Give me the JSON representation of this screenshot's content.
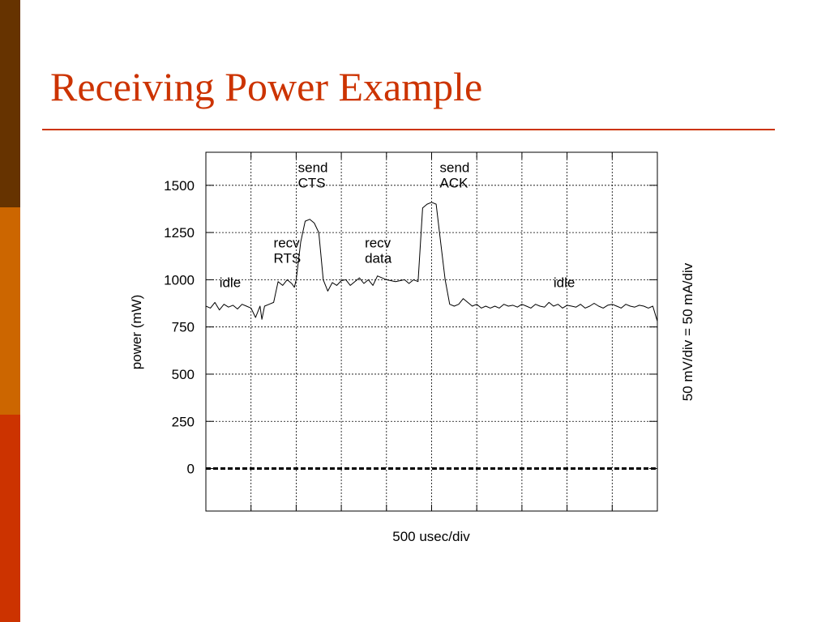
{
  "slide": {
    "title": "Receiving Power Example",
    "colors": {
      "bar_top": "#663300",
      "bar_mid": "#cc6600",
      "bar_bottom": "#cc3300",
      "title": "#cc3300"
    }
  },
  "chart_data": {
    "type": "line",
    "title": "",
    "xlabel": "500 usec/div",
    "ylabel": "power (mW)",
    "right_label": "50 mV/div = 50 mA/div",
    "ylim": [
      -225,
      1675
    ],
    "xlim": [
      0,
      5000
    ],
    "x_divisions": 10,
    "grid": true,
    "yticks": [
      0,
      250,
      500,
      750,
      1000,
      1250,
      1500
    ],
    "annotations": [
      {
        "text": [
          "idle"
        ],
        "x": 150,
        "y": 960
      },
      {
        "text": [
          "recv",
          "RTS"
        ],
        "x": 750,
        "y": 1170
      },
      {
        "text": [
          "send",
          "CTS"
        ],
        "x": 1020,
        "y": 1570
      },
      {
        "text": [
          "recv",
          "data"
        ],
        "x": 1760,
        "y": 1170
      },
      {
        "text": [
          "send",
          "ACK"
        ],
        "x": 2590,
        "y": 1570
      },
      {
        "text": [
          "idle"
        ],
        "x": 3850,
        "y": 960
      }
    ],
    "series": [
      {
        "style": "solid",
        "x": [
          0,
          50,
          100,
          150,
          200,
          250,
          300,
          350,
          400,
          450,
          500,
          550,
          600,
          620,
          650,
          700,
          750,
          800,
          850,
          900,
          950,
          980,
          1000,
          1050,
          1100,
          1150,
          1200,
          1250,
          1300,
          1350,
          1400,
          1450,
          1500,
          1550,
          1600,
          1650,
          1700,
          1750,
          1800,
          1850,
          1900,
          2000,
          2100,
          2200,
          2250,
          2300,
          2350,
          2400,
          2450,
          2500,
          2550,
          2600,
          2650,
          2700,
          2750,
          2800,
          2850,
          2900,
          2950,
          3000,
          3050,
          3100,
          3150,
          3200,
          3250,
          3300,
          3350,
          3400,
          3450,
          3500,
          3550,
          3600,
          3650,
          3700,
          3750,
          3800,
          3850,
          3900,
          3950,
          4000,
          4050,
          4100,
          4150,
          4200,
          4250,
          4300,
          4350,
          4400,
          4450,
          4500,
          4550,
          4600,
          4650,
          4700,
          4750,
          4800,
          4850,
          4900,
          4950,
          5000
        ],
        "y": [
          860,
          850,
          880,
          840,
          870,
          855,
          865,
          845,
          870,
          860,
          850,
          800,
          860,
          790,
          860,
          870,
          880,
          990,
          970,
          1000,
          980,
          960,
          1000,
          1200,
          1310,
          1320,
          1300,
          1250,
          1000,
          940,
          985,
          970,
          995,
          1000,
          970,
          990,
          1010,
          980,
          1000,
          970,
          1020,
          1000,
          990,
          1000,
          980,
          1000,
          990,
          1380,
          1400,
          1410,
          1400,
          1200,
          1000,
          870,
          860,
          870,
          900,
          880,
          860,
          870,
          850,
          860,
          850,
          860,
          850,
          870,
          860,
          865,
          855,
          870,
          860,
          850,
          870,
          860,
          855,
          880,
          860,
          870,
          850,
          865,
          860,
          855,
          870,
          850,
          860,
          875,
          860,
          850,
          865,
          870,
          860,
          850,
          870,
          860,
          855,
          865,
          860,
          850,
          860,
          780
        ]
      },
      {
        "style": "dashed",
        "x": [
          0,
          5000
        ],
        "y": [
          0,
          0
        ]
      }
    ]
  }
}
